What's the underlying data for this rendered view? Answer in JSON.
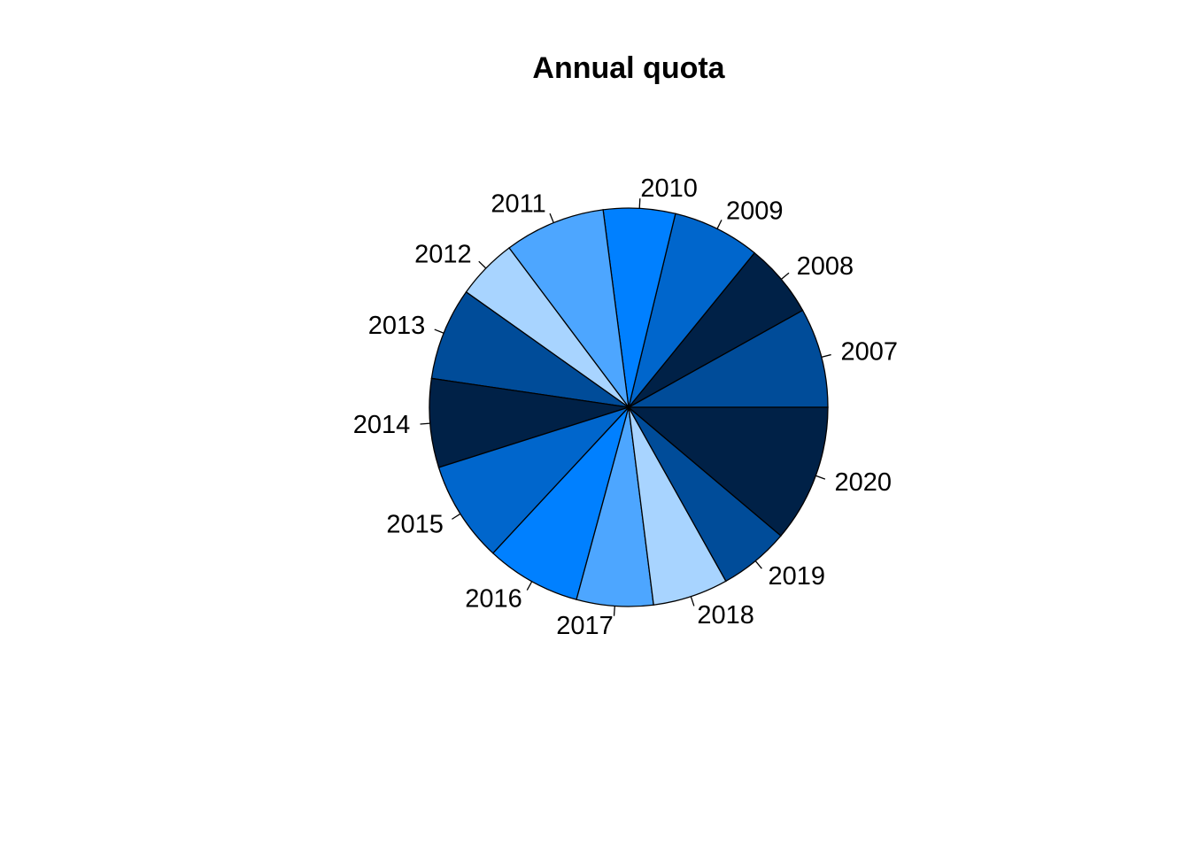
{
  "chart_data": {
    "type": "pie",
    "title": "Annual quota",
    "start": "3 o'clock",
    "direction": "counterclockwise",
    "categories": [
      "2007",
      "2008",
      "2009",
      "2010",
      "2011",
      "2012",
      "2013",
      "2014",
      "2015",
      "2016",
      "2017",
      "2018",
      "2019",
      "2020"
    ],
    "values": [
      8.2,
      6.1,
      7.2,
      5.9,
      8.3,
      5.0,
      7.6,
      7.3,
      8.3,
      7.8,
      6.3,
      6.2,
      5.8,
      11.3
    ],
    "colors": [
      "#004c99",
      "#002147",
      "#0066cc",
      "#0080ff",
      "#4da6ff",
      "#a8d4ff",
      "#004c99",
      "#002147",
      "#0066cc",
      "#0080ff",
      "#4da6ff",
      "#a8d4ff",
      "#004c99",
      "#002147"
    ],
    "legend": "none"
  }
}
